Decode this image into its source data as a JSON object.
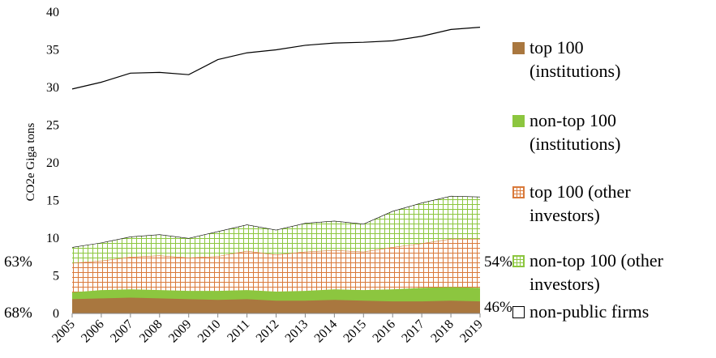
{
  "chart_data": {
    "type": "stacked_area",
    "y_label": "CO2e Giga tons",
    "x": [
      2005,
      2006,
      2007,
      2008,
      2009,
      2010,
      2011,
      2012,
      2013,
      2014,
      2015,
      2016,
      2017,
      2018,
      2019
    ],
    "xlim": [
      2005,
      2019
    ],
    "xticks": [
      2005,
      2006,
      2007,
      2008,
      2009,
      2010,
      2011,
      2012,
      2013,
      2014,
      2015,
      2016,
      2017,
      2018,
      2019
    ],
    "ylim": [
      0,
      40
    ],
    "yticks": [
      0,
      5,
      10,
      15,
      20,
      25,
      30,
      35,
      40
    ],
    "grid": false,
    "legend": "right",
    "series": [
      {
        "name": "top 100 (institutions)",
        "color": "#a9773f",
        "pattern": "solid",
        "values": [
          1.9,
          2.0,
          2.1,
          2.0,
          1.9,
          1.8,
          1.9,
          1.7,
          1.7,
          1.8,
          1.7,
          1.6,
          1.6,
          1.7,
          1.6
        ]
      },
      {
        "name": "non-top 100 (institutions)",
        "color": "#8cc63f",
        "pattern": "solid",
        "values": [
          0.9,
          1.1,
          1.1,
          1.1,
          1.1,
          1.2,
          1.2,
          1.2,
          1.3,
          1.4,
          1.4,
          1.6,
          1.8,
          1.8,
          1.8
        ]
      },
      {
        "name": "top 100 (other investors)",
        "color": "#d9793a",
        "pattern": "grid",
        "values": [
          3.9,
          3.9,
          4.3,
          4.6,
          4.4,
          4.6,
          5.2,
          4.9,
          5.2,
          5.2,
          5.1,
          5.6,
          5.9,
          6.4,
          6.5
        ]
      },
      {
        "name": "non-top 100 (other investors)",
        "color": "#8cc63f",
        "pattern": "grid",
        "values": [
          2.1,
          2.4,
          2.7,
          2.8,
          2.6,
          3.3,
          3.5,
          3.3,
          3.8,
          3.9,
          3.7,
          4.8,
          5.4,
          5.7,
          5.6
        ]
      },
      {
        "name": "non-public firms",
        "color": "#000000",
        "pattern": "outline",
        "values": [
          21.0,
          21.3,
          21.7,
          21.5,
          21.7,
          22.8,
          22.8,
          23.9,
          23.6,
          23.6,
          24.1,
          22.6,
          22.1,
          22.1,
          22.5
        ]
      }
    ],
    "annotations": [
      "63%",
      "68%",
      "54%",
      "46%"
    ]
  }
}
